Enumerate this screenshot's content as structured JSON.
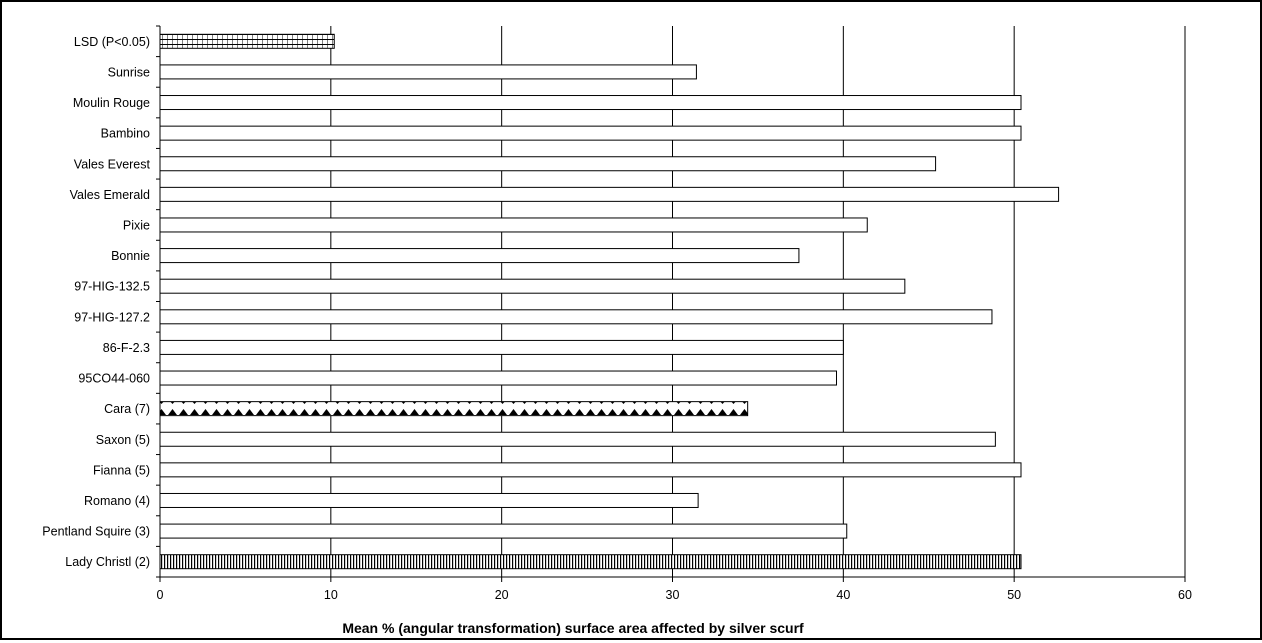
{
  "chart_data": {
    "type": "bar",
    "orientation": "horizontal",
    "xlabel": "Mean % (angular transformation) surface area affected by silver scurf",
    "xlim": [
      0,
      60
    ],
    "xticks": [
      0,
      10,
      20,
      30,
      40,
      50,
      60
    ],
    "grid": "vertical",
    "legend": "none",
    "categories": [
      "LSD (P<0.05)",
      "Sunrise",
      "Moulin Rouge",
      "Bambino",
      "Vales Everest",
      "Vales Emerald",
      "Pixie",
      "Bonnie",
      "97-HIG-132.5",
      "97-HIG-127.2",
      "86-F-2.3",
      "95CO44-060",
      "Cara (7)",
      "Saxon (5)",
      "Fianna (5)",
      "Romano (4)",
      "Pentland Squire (3)",
      "Lady Christl (2)"
    ],
    "values": [
      10.2,
      31.4,
      50.4,
      50.4,
      45.4,
      52.6,
      41.4,
      37.4,
      43.6,
      48.7,
      40.0,
      39.6,
      34.4,
      48.9,
      50.4,
      31.5,
      40.2,
      50.4
    ],
    "patterns": [
      "grid",
      "plain",
      "plain",
      "plain",
      "plain",
      "plain",
      "plain",
      "plain",
      "plain",
      "plain",
      "plain",
      "plain",
      "triangles",
      "plain",
      "plain",
      "plain",
      "plain",
      "vertical-lines"
    ]
  }
}
